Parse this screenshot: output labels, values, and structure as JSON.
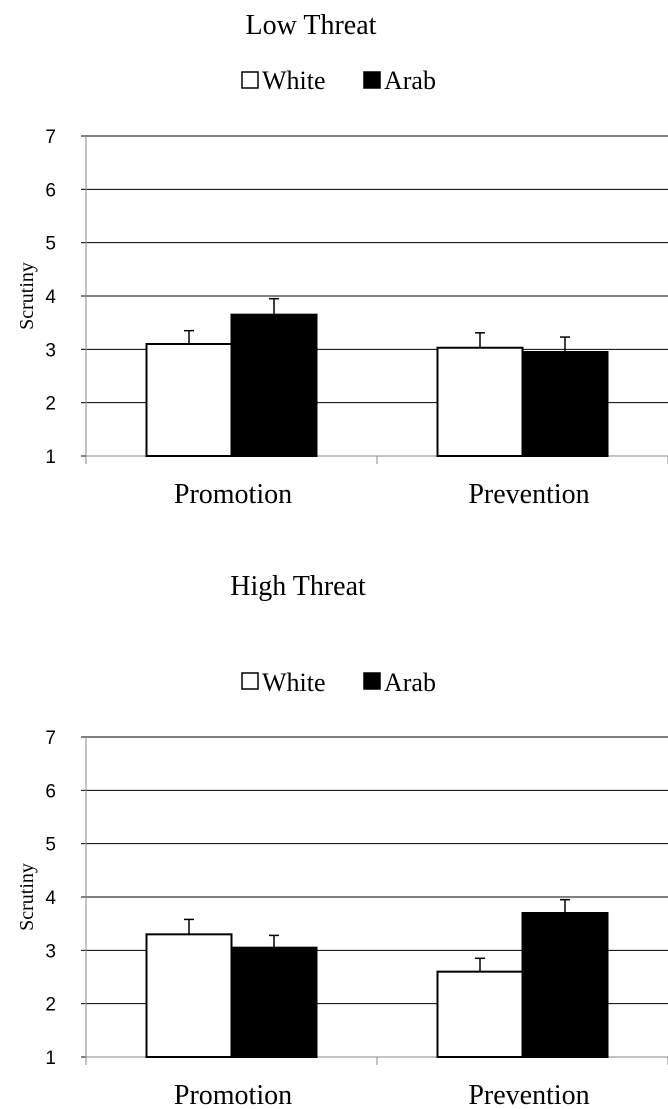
{
  "chart_data": [
    {
      "type": "bar",
      "title": "Low Threat",
      "ylabel": "Scrutiny",
      "ylim": [
        1,
        7
      ],
      "yticks": [
        1,
        2,
        3,
        4,
        5,
        6,
        7
      ],
      "grid": true,
      "legend_position": "top",
      "categories": [
        "Promotion",
        "Prevention"
      ],
      "series": [
        {
          "name": "White",
          "color": "#ffffff",
          "values": [
            3.1,
            3.03
          ],
          "error": [
            0.25,
            0.28
          ]
        },
        {
          "name": "Arab",
          "color": "#000000",
          "values": [
            3.65,
            2.95
          ],
          "error": [
            0.3,
            0.28
          ]
        }
      ]
    },
    {
      "type": "bar",
      "title": "High Threat",
      "ylabel": "Scrutiny",
      "ylim": [
        1,
        7
      ],
      "yticks": [
        1,
        2,
        3,
        4,
        5,
        6,
        7
      ],
      "grid": true,
      "legend_position": "top",
      "categories": [
        "Promotion",
        "Prevention"
      ],
      "series": [
        {
          "name": "White",
          "color": "#ffffff",
          "values": [
            3.3,
            2.6
          ],
          "error": [
            0.28,
            0.25
          ]
        },
        {
          "name": "Arab",
          "color": "#000000",
          "values": [
            3.05,
            3.7
          ],
          "error": [
            0.23,
            0.25
          ]
        }
      ]
    }
  ]
}
